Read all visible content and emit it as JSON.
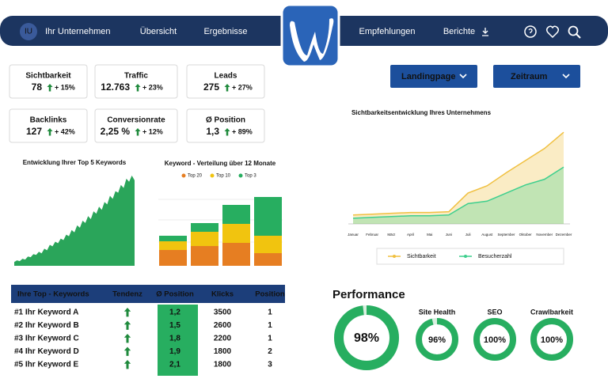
{
  "nav": {
    "initials": "IU",
    "items": [
      "Ihr Unternehmen",
      "Übersicht",
      "Ergebnisse",
      "Empfehlungen",
      "Berichte"
    ]
  },
  "kpis": [
    {
      "label": "Sichtbarkeit",
      "value": "78",
      "change": "+ 15%"
    },
    {
      "label": "Traffic",
      "value": "12.763",
      "change": "+ 23%"
    },
    {
      "label": "Leads",
      "value": "275",
      "change": "+ 27%"
    },
    {
      "label": "Backlinks",
      "value": "127",
      "change": "+ 42%"
    },
    {
      "label": "Conversionrate",
      "value": "2,25 %",
      "change": "+ 12%"
    },
    {
      "label": "Ø Position",
      "value": "1,3",
      "change": "+ 89%"
    }
  ],
  "dropdowns": [
    "Landingpage",
    "Zeitraum"
  ],
  "chart_data": [
    {
      "type": "area",
      "title": "Entwicklung Ihrer Top 5 Keywords",
      "color": "#2aa55a",
      "ylim": [
        0,
        120
      ],
      "values": [
        5,
        7,
        6,
        9,
        8,
        12,
        11,
        15,
        14,
        18,
        16,
        22,
        20,
        27,
        25,
        31,
        29,
        35,
        33,
        40,
        38,
        46,
        43,
        52,
        49,
        58,
        55,
        64,
        60,
        70,
        67,
        76,
        72,
        82,
        79,
        90,
        86,
        96,
        94,
        104,
        100,
        112,
        108,
        116,
        110
      ]
    },
    {
      "type": "stacked-bar",
      "title": "Keyword - Verteilung über 12 Monate",
      "ylim": [
        0,
        100
      ],
      "categories": [
        null,
        null,
        null,
        null
      ],
      "series": [
        {
          "name": "Top 20",
          "color": "#e67e22",
          "values": [
            20,
            25,
            29,
            16
          ]
        },
        {
          "name": "Top 10",
          "color": "#f1c40f",
          "values": [
            11,
            18,
            24,
            22
          ]
        },
        {
          "name": "Top 3",
          "color": "#27ae60",
          "values": [
            7,
            11,
            24,
            49
          ]
        }
      ]
    },
    {
      "type": "line",
      "title": "Sichtbarkeitsentwicklung Ihres Unternehmens",
      "ylim": [
        0,
        120
      ],
      "categories": [
        "Januar",
        "Februar",
        "März",
        "April",
        "Mai",
        "Juni",
        "Juli",
        "August",
        "September",
        "Oktober",
        "November",
        "Dezember"
      ],
      "series": [
        {
          "name": "Sichtbarkeit",
          "color": "#f0c040",
          "values": [
            11,
            12,
            13,
            14,
            14,
            15,
            38,
            47,
            63,
            78,
            93,
            113
          ]
        },
        {
          "name": "Besucherzahl",
          "color": "#3ecf8e",
          "values": [
            7,
            8,
            9,
            10,
            10,
            11,
            25,
            28,
            38,
            48,
            55,
            70
          ]
        }
      ]
    }
  ],
  "table": {
    "header": [
      "Ihre Top - Keywords",
      "Tendenz",
      "Ø Position",
      "Klicks",
      "Position"
    ],
    "rows": [
      [
        "#1 Ihr Keyword A",
        "1,2",
        "3500",
        "1"
      ],
      [
        "#2 Ihr Keyword B",
        "1,5",
        "2600",
        "1"
      ],
      [
        "#3 Ihr Keyword C",
        "1,8",
        "2200",
        "1"
      ],
      [
        "#4 Ihr Keyword D",
        "1,9",
        "1800",
        "2"
      ],
      [
        "#5 Ihr Keyword E",
        "2,1",
        "1800",
        "3"
      ]
    ]
  },
  "performance": {
    "title": "Performance",
    "gauges": [
      {
        "value": 98,
        "value_label": "98%"
      },
      {
        "label": "Site Health",
        "value": 96,
        "value_label": "96%"
      },
      {
        "label": "SEO",
        "value": 100,
        "value_label": "100%"
      },
      {
        "label": "Crawlbarkeit",
        "value": 100,
        "value_label": "100%"
      }
    ]
  }
}
